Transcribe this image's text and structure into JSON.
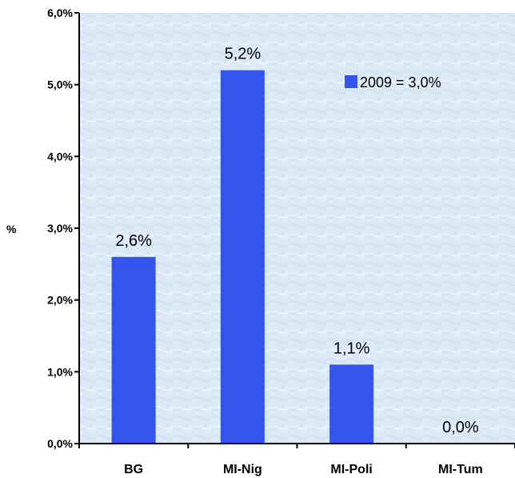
{
  "chart_data": {
    "type": "bar",
    "categories": [
      "BG",
      "MI-Nig",
      "MI-Poli",
      "MI-Tum"
    ],
    "values": [
      2.6,
      5.2,
      1.1,
      0.0
    ],
    "data_labels": [
      "2,6%",
      "5,2%",
      "1,1%",
      "0,0%"
    ],
    "ylabel": "%",
    "ylim": [
      0,
      6
    ],
    "yticks": [
      0,
      1,
      2,
      3,
      4,
      5,
      6
    ],
    "ytick_labels": [
      "0,0%",
      "1,0%",
      "2,0%",
      "3,0%",
      "4,0%",
      "5,0%",
      "6,0%"
    ],
    "legend": {
      "label": "2009 = 3,0%",
      "position": "top-right"
    },
    "grid": false,
    "colors": {
      "bar": "#3355ee",
      "plot_bg": "#dce9f6",
      "axis": "#000000"
    }
  }
}
